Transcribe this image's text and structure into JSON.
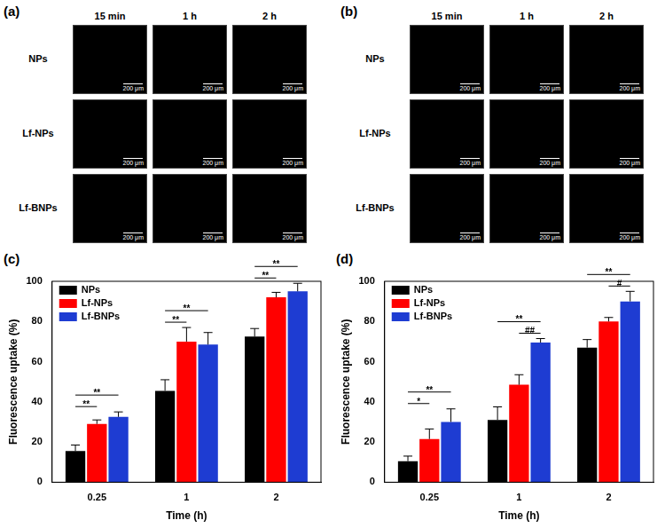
{
  "images": [
    {
      "panel": "(a)",
      "columns": [
        "15 min",
        "1 h",
        "2 h"
      ],
      "rows": [
        "NPs",
        "Lf-NPs",
        "Lf-BNPs"
      ],
      "scale_bar": "200 μm"
    },
    {
      "panel": "(b)",
      "columns": [
        "15 min",
        "1 h",
        "2 h"
      ],
      "rows": [
        "NPs",
        "Lf-NPs",
        "Lf-BNPs"
      ],
      "scale_bar": "200 μm"
    }
  ],
  "chart_data": [
    {
      "panel": "(c)",
      "type": "bar",
      "x_label": "Time (h)",
      "y_label": "Fluorescence uptake (%)",
      "categories": [
        "0.25",
        "1",
        "2"
      ],
      "series": [
        {
          "name": "NPs",
          "color": "#000000",
          "values": [
            15.5,
            45.5,
            72.5
          ],
          "errors": [
            3,
            5.5,
            4
          ]
        },
        {
          "name": "Lf-NPs",
          "color": "#ff0000",
          "values": [
            29,
            70,
            92
          ],
          "errors": [
            2,
            7,
            2.5
          ]
        },
        {
          "name": "Lf-BNPs",
          "color": "#1e3cd2",
          "values": [
            32.5,
            68.5,
            95
          ],
          "errors": [
            2.5,
            6,
            4
          ]
        }
      ],
      "significance": [
        [
          {
            "from": "NPs",
            "to": "Lf-NPs",
            "label": "**"
          },
          {
            "from": "NPs",
            "to": "Lf-BNPs",
            "label": "**"
          }
        ],
        [
          {
            "from": "NPs",
            "to": "Lf-NPs",
            "label": "**"
          },
          {
            "from": "NPs",
            "to": "Lf-BNPs",
            "label": "**"
          }
        ],
        [
          {
            "from": "NPs",
            "to": "Lf-NPs",
            "label": "**"
          },
          {
            "from": "NPs",
            "to": "Lf-BNPs",
            "label": "**"
          }
        ]
      ],
      "ylim": [
        0,
        100
      ],
      "yticks": [
        0,
        20,
        40,
        60,
        80,
        100
      ],
      "grid": false,
      "legend": "upper left"
    },
    {
      "panel": "(d)",
      "type": "bar",
      "x_label": "Time (h)",
      "y_label": "Fluorescence uptake (%)",
      "categories": [
        "0.25",
        "1",
        "2"
      ],
      "series": [
        {
          "name": "NPs",
          "color": "#000000",
          "values": [
            10.5,
            31,
            67
          ],
          "errors": [
            2.5,
            6.5,
            4
          ]
        },
        {
          "name": "Lf-NPs",
          "color": "#ff0000",
          "values": [
            21.5,
            48.5,
            80
          ],
          "errors": [
            5,
            5,
            2
          ]
        },
        {
          "name": "Lf-BNPs",
          "color": "#1e3cd2",
          "values": [
            30,
            69.5,
            90
          ],
          "errors": [
            6.5,
            2,
            5
          ]
        }
      ],
      "significance": [
        [
          {
            "from": "NPs",
            "to": "Lf-NPs",
            "label": "*"
          },
          {
            "from": "NPs",
            "to": "Lf-BNPs",
            "label": "**"
          }
        ],
        [
          {
            "from": "Lf-NPs",
            "to": "Lf-BNPs",
            "label": "##"
          },
          {
            "from": "NPs",
            "to": "Lf-BNPs",
            "label": "**"
          }
        ],
        [
          {
            "from": "Lf-NPs",
            "to": "Lf-BNPs",
            "label": "#"
          },
          {
            "from": "NPs",
            "to": "Lf-BNPs",
            "label": "**"
          }
        ]
      ],
      "ylim": [
        0,
        100
      ],
      "yticks": [
        0,
        20,
        40,
        60,
        80,
        100
      ],
      "grid": false,
      "legend": "upper left"
    }
  ]
}
